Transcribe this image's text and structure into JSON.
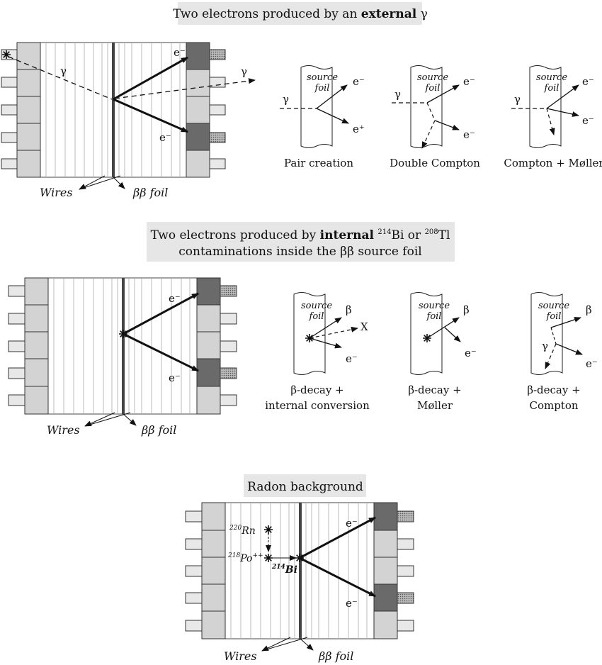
{
  "sections": [
    {
      "title_pre": "Two electrons produced by an ",
      "title_bold": "external",
      "title_post": " γ",
      "detector": {
        "electron_top": "e⁻",
        "electron_bottom": "e⁻",
        "gamma_in": "γ",
        "gamma_out": "γ",
        "wires": "Wires",
        "foil": "ββ foil"
      },
      "processes": [
        {
          "foil_label_1": "source",
          "foil_label_2": "foil",
          "in": "γ",
          "out_top": "e⁻",
          "out_bottom": "e⁺",
          "caption": "Pair creation"
        },
        {
          "foil_label_1": "source",
          "foil_label_2": "foil",
          "in": "γ",
          "out_top": "e⁻",
          "out_bottom": "e⁻",
          "caption": "Double Compton"
        },
        {
          "foil_label_1": "source",
          "foil_label_2": "foil",
          "in": "γ",
          "out_top": "e⁻",
          "out_bottom": "e⁻",
          "caption": "Compton + Møller"
        }
      ]
    },
    {
      "title_line1_pre": "Two electrons produced by ",
      "title_line1_bold": "internal",
      "title_line1_sup1": "214",
      "title_line1_mid": "Bi or ",
      "title_line1_sup2": "208",
      "title_line1_post": "Tl",
      "title_line2": "contaminations inside the ββ  source foil",
      "detector": {
        "electron_top": "e⁻",
        "electron_bottom": "e⁻",
        "wires": "Wires",
        "foil": "ββ foil"
      },
      "processes": [
        {
          "foil_label_1": "source",
          "foil_label_2": "foil",
          "out_top": "β",
          "out_mid": "X",
          "out_bottom": "e⁻",
          "caption_1": "β-decay +",
          "caption_2": "internal conversion"
        },
        {
          "foil_label_1": "source",
          "foil_label_2": "foil",
          "out_top": "β",
          "out_bottom": "e⁻",
          "caption_1": "β-decay +",
          "caption_2": "Møller"
        },
        {
          "foil_label_1": "source",
          "foil_label_2": "foil",
          "gamma": "γ",
          "out_top": "β",
          "out_bottom": "e⁻",
          "caption_1": "β-decay +",
          "caption_2": "Compton"
        }
      ]
    },
    {
      "title": "Radon background",
      "detector": {
        "electron_top": "e⁻",
        "electron_bottom": "e⁻",
        "rn_sup": "220",
        "rn": "Rn",
        "po_sup": "218",
        "po": "Po",
        "po_charge": "++",
        "bi_sup": "214",
        "bi": "Bi",
        "wires": "Wires",
        "foil": "ββ foil"
      }
    }
  ]
}
